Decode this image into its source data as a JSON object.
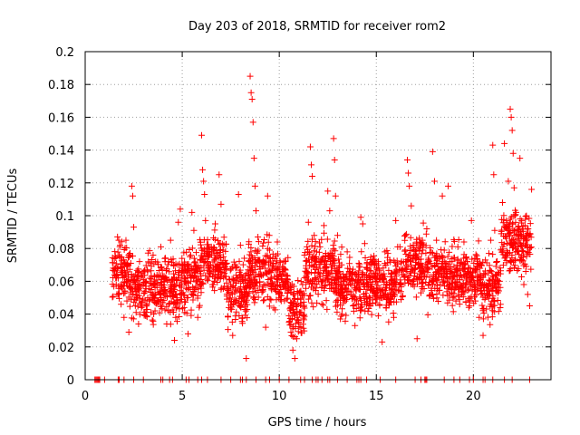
{
  "chart_data": {
    "type": "scatter",
    "title": "Day 203 of 2018, SRMTID for receiver rom2",
    "xlabel": "GPS time / hours",
    "ylabel": "SRMTID / TECUs",
    "xlim": [
      0,
      24
    ],
    "ylim": [
      0,
      0.2
    ],
    "x_ticks": [
      0,
      5,
      10,
      15,
      20
    ],
    "y_ticks": [
      0,
      0.02,
      0.04,
      0.06,
      0.08,
      0.1,
      0.12,
      0.14,
      0.16,
      0.18,
      0.2
    ],
    "x_tick_labels": [
      "0",
      "5",
      "10",
      "15",
      "20"
    ],
    "y_tick_labels": [
      "0",
      "0.02",
      "0.04",
      "0.06",
      "0.08",
      "0.1",
      "0.12",
      "0.14",
      "0.16",
      "0.18",
      "0.2"
    ],
    "grid": true,
    "marker": "+",
    "color": "#ff0000",
    "series": [
      {
        "name": "SRMTID",
        "points": [
          [
            1.6,
            0.058
          ],
          [
            1.7,
            0.062
          ],
          [
            1.75,
            0.052
          ],
          [
            1.8,
            0.082
          ],
          [
            1.85,
            0.046
          ],
          [
            1.9,
            0.057
          ],
          [
            1.95,
            0.069
          ],
          [
            2.0,
            0.038
          ],
          [
            2.05,
            0.053
          ],
          [
            2.1,
            0.085
          ],
          [
            2.15,
            0.048
          ],
          [
            2.2,
            0.061
          ],
          [
            2.25,
            0.029
          ],
          [
            2.3,
            0.056
          ],
          [
            2.35,
            0.071
          ],
          [
            2.4,
            0.118
          ],
          [
            2.45,
            0.112
          ],
          [
            2.5,
            0.093
          ],
          [
            2.55,
            0.049
          ],
          [
            2.6,
            0.064
          ],
          [
            2.7,
            0.058
          ],
          [
            2.75,
            0.034
          ],
          [
            2.8,
            0.072
          ],
          [
            2.9,
            0.044
          ],
          [
            3.0,
            0.061
          ],
          [
            3.05,
            0.053
          ],
          [
            3.1,
            0.039
          ],
          [
            3.2,
            0.067
          ],
          [
            3.3,
            0.048
          ],
          [
            3.4,
            0.055
          ],
          [
            3.5,
            0.076
          ],
          [
            3.6,
            0.042
          ],
          [
            3.7,
            0.059
          ],
          [
            3.8,
            0.063
          ],
          [
            3.9,
            0.081
          ],
          [
            4.0,
            0.047
          ],
          [
            4.1,
            0.055
          ],
          [
            4.2,
            0.034
          ],
          [
            4.3,
            0.072
          ],
          [
            4.4,
            0.085
          ],
          [
            4.5,
            0.061
          ],
          [
            4.6,
            0.024
          ],
          [
            4.7,
            0.052
          ],
          [
            4.8,
            0.096
          ],
          [
            4.9,
            0.104
          ],
          [
            5.0,
            0.068
          ],
          [
            5.1,
            0.044
          ],
          [
            5.2,
            0.059
          ],
          [
            5.3,
            0.028
          ],
          [
            5.4,
            0.075
          ],
          [
            5.5,
            0.102
          ],
          [
            5.6,
            0.091
          ],
          [
            5.7,
            0.057
          ],
          [
            5.8,
            0.038
          ],
          [
            5.9,
            0.066
          ],
          [
            6.0,
            0.149
          ],
          [
            6.05,
            0.128
          ],
          [
            6.1,
            0.121
          ],
          [
            6.15,
            0.113
          ],
          [
            6.2,
            0.097
          ],
          [
            6.3,
            0.072
          ],
          [
            6.4,
            0.065
          ],
          [
            6.5,
            0.081
          ],
          [
            6.6,
            0.058
          ],
          [
            6.7,
            0.095
          ],
          [
            6.8,
            0.062
          ],
          [
            6.9,
            0.125
          ],
          [
            7.0,
            0.107
          ],
          [
            7.1,
            0.079
          ],
          [
            7.2,
            0.063
          ],
          [
            7.3,
            0.051
          ],
          [
            7.4,
            0.044
          ],
          [
            7.5,
            0.058
          ],
          [
            7.6,
            0.027
          ],
          [
            7.7,
            0.049
          ],
          [
            7.8,
            0.069
          ],
          [
            7.9,
            0.113
          ],
          [
            8.0,
            0.082
          ],
          [
            8.1,
            0.061
          ],
          [
            8.2,
            0.074
          ],
          [
            8.3,
            0.013
          ],
          [
            8.4,
            0.067
          ],
          [
            8.5,
            0.185
          ],
          [
            8.55,
            0.175
          ],
          [
            8.6,
            0.171
          ],
          [
            8.65,
            0.157
          ],
          [
            8.7,
            0.135
          ],
          [
            8.75,
            0.118
          ],
          [
            8.8,
            0.103
          ],
          [
            8.9,
            0.087
          ],
          [
            9.0,
            0.073
          ],
          [
            9.1,
            0.064
          ],
          [
            9.2,
            0.058
          ],
          [
            9.3,
            0.032
          ],
          [
            9.4,
            0.112
          ],
          [
            9.5,
            0.079
          ],
          [
            9.6,
            0.062
          ],
          [
            9.7,
            0.071
          ],
          [
            9.8,
            0.055
          ],
          [
            9.9,
            0.084
          ],
          [
            10.0,
            0.067
          ],
          [
            10.1,
            0.048
          ],
          [
            10.2,
            0.058
          ],
          [
            10.3,
            0.072
          ],
          [
            10.4,
            0.061
          ],
          [
            10.5,
            0.039
          ],
          [
            10.6,
            0.029
          ],
          [
            10.7,
            0.018
          ],
          [
            10.8,
            0.013
          ],
          [
            10.9,
            0.025
          ],
          [
            11.0,
            0.035
          ],
          [
            11.1,
            0.049
          ],
          [
            11.2,
            0.058
          ],
          [
            11.3,
            0.076
          ],
          [
            11.4,
            0.063
          ],
          [
            11.5,
            0.096
          ],
          [
            11.6,
            0.142
          ],
          [
            11.65,
            0.131
          ],
          [
            11.7,
            0.124
          ],
          [
            11.8,
            0.088
          ],
          [
            11.9,
            0.072
          ],
          [
            12.0,
            0.065
          ],
          [
            12.1,
            0.081
          ],
          [
            12.2,
            0.057
          ],
          [
            12.3,
            0.094
          ],
          [
            12.4,
            0.068
          ],
          [
            12.5,
            0.115
          ],
          [
            12.6,
            0.103
          ],
          [
            12.7,
            0.077
          ],
          [
            12.8,
            0.147
          ],
          [
            12.85,
            0.134
          ],
          [
            12.9,
            0.112
          ],
          [
            13.0,
            0.088
          ],
          [
            13.1,
            0.069
          ],
          [
            13.2,
            0.055
          ],
          [
            13.3,
            0.062
          ],
          [
            13.4,
            0.048
          ],
          [
            13.5,
            0.078
          ],
          [
            13.6,
            0.066
          ],
          [
            13.7,
            0.052
          ],
          [
            13.8,
            0.045
          ],
          [
            13.9,
            0.033
          ],
          [
            14.0,
            0.057
          ],
          [
            14.1,
            0.071
          ],
          [
            14.2,
            0.099
          ],
          [
            14.3,
            0.095
          ],
          [
            14.4,
            0.083
          ],
          [
            14.5,
            0.064
          ],
          [
            14.6,
            0.058
          ],
          [
            14.7,
            0.045
          ],
          [
            14.8,
            0.072
          ],
          [
            14.9,
            0.053
          ],
          [
            15.0,
            0.068
          ],
          [
            15.1,
            0.039
          ],
          [
            15.2,
            0.061
          ],
          [
            15.3,
            0.023
          ],
          [
            15.4,
            0.058
          ],
          [
            15.5,
            0.044
          ],
          [
            15.6,
            0.077
          ],
          [
            15.7,
            0.052
          ],
          [
            15.8,
            0.065
          ],
          [
            15.9,
            0.038
          ],
          [
            16.0,
            0.097
          ],
          [
            16.1,
            0.081
          ],
          [
            16.2,
            0.058
          ],
          [
            16.3,
            0.072
          ],
          [
            16.4,
            0.064
          ],
          [
            16.5,
            0.088
          ],
          [
            16.6,
            0.134
          ],
          [
            16.65,
            0.126
          ],
          [
            16.7,
            0.118
          ],
          [
            16.8,
            0.106
          ],
          [
            16.9,
            0.082
          ],
          [
            17.0,
            0.074
          ],
          [
            17.1,
            0.025
          ],
          [
            17.2,
            0.061
          ],
          [
            17.3,
            0.053
          ],
          [
            17.4,
            0.079
          ],
          [
            17.5,
            0.066
          ],
          [
            17.6,
            0.092
          ],
          [
            17.7,
            0.058
          ],
          [
            17.8,
            0.071
          ],
          [
            17.9,
            0.139
          ],
          [
            18.0,
            0.121
          ],
          [
            18.1,
            0.085
          ],
          [
            18.2,
            0.067
          ],
          [
            18.3,
            0.058
          ],
          [
            18.4,
            0.112
          ],
          [
            18.5,
            0.079
          ],
          [
            18.6,
            0.063
          ],
          [
            18.7,
            0.118
          ],
          [
            18.8,
            0.072
          ],
          [
            18.9,
            0.055
          ],
          [
            19.0,
            0.069
          ],
          [
            19.1,
            0.048
          ],
          [
            19.2,
            0.081
          ],
          [
            19.3,
            0.061
          ],
          [
            19.4,
            0.052
          ],
          [
            19.5,
            0.074
          ],
          [
            19.6,
            0.058
          ],
          [
            19.7,
            0.066
          ],
          [
            19.8,
            0.045
          ],
          [
            19.9,
            0.097
          ],
          [
            20.0,
            0.062
          ],
          [
            20.1,
            0.054
          ],
          [
            20.2,
            0.071
          ],
          [
            20.3,
            0.038
          ],
          [
            20.4,
            0.058
          ],
          [
            20.5,
            0.027
          ],
          [
            20.6,
            0.064
          ],
          [
            20.7,
            0.052
          ],
          [
            20.8,
            0.077
          ],
          [
            20.9,
            0.085
          ],
          [
            21.0,
            0.143
          ],
          [
            21.05,
            0.125
          ],
          [
            21.1,
            0.091
          ],
          [
            21.2,
            0.072
          ],
          [
            21.3,
            0.058
          ],
          [
            21.4,
            0.046
          ],
          [
            21.5,
            0.108
          ],
          [
            21.6,
            0.144
          ],
          [
            21.7,
            0.097
          ],
          [
            21.8,
            0.121
          ],
          [
            21.9,
            0.165
          ],
          [
            21.95,
            0.16
          ],
          [
            22.0,
            0.152
          ],
          [
            22.05,
            0.138
          ],
          [
            22.1,
            0.117
          ],
          [
            22.2,
            0.102
          ],
          [
            22.3,
            0.086
          ],
          [
            22.4,
            0.135
          ],
          [
            22.5,
            0.073
          ],
          [
            22.6,
            0.058
          ],
          [
            22.7,
            0.066
          ],
          [
            22.8,
            0.052
          ],
          [
            22.9,
            0.045
          ],
          [
            23.0,
            0.116
          ]
        ]
      }
    ],
    "band_segments": [
      [
        1.4,
        2.3,
        0.06,
        0.075
      ],
      [
        2.3,
        4.9,
        0.044,
        0.068
      ],
      [
        4.9,
        5.9,
        0.05,
        0.072
      ],
      [
        5.9,
        7.3,
        0.06,
        0.082
      ],
      [
        7.3,
        8.4,
        0.042,
        0.066
      ],
      [
        8.4,
        9.5,
        0.055,
        0.078
      ],
      [
        9.5,
        10.5,
        0.05,
        0.072
      ],
      [
        10.5,
        11.3,
        0.03,
        0.055
      ],
      [
        11.3,
        12.9,
        0.055,
        0.08
      ],
      [
        12.9,
        14.0,
        0.045,
        0.068
      ],
      [
        14.0,
        16.4,
        0.048,
        0.07
      ],
      [
        16.4,
        17.6,
        0.058,
        0.082
      ],
      [
        17.6,
        20.4,
        0.052,
        0.075
      ],
      [
        20.4,
        21.4,
        0.045,
        0.066
      ],
      [
        21.4,
        23.0,
        0.07,
        0.1
      ]
    ],
    "zero_points": [
      0.5,
      0.55,
      0.6,
      0.65,
      0.7,
      0.75,
      1.0,
      1.7,
      1.75,
      2.0,
      2.5,
      3.0,
      3.9,
      4.0,
      4.35,
      4.5,
      5.2,
      5.35,
      5.8,
      6.0,
      6.3,
      7.0,
      7.5,
      8.0,
      8.1,
      8.3,
      8.8,
      9.3,
      9.5,
      10.0,
      10.5,
      11.1,
      11.3,
      11.7,
      11.9,
      12.0,
      12.2,
      12.5,
      12.6,
      13.0,
      13.5,
      14.0,
      14.1,
      14.2,
      14.5,
      15.2,
      16.0,
      17.0,
      17.3,
      17.5,
      17.55,
      17.6,
      18.5,
      19.0,
      19.3,
      19.8,
      20.0,
      20.5,
      20.6,
      21.0,
      21.6,
      22.0,
      22.9
    ]
  }
}
